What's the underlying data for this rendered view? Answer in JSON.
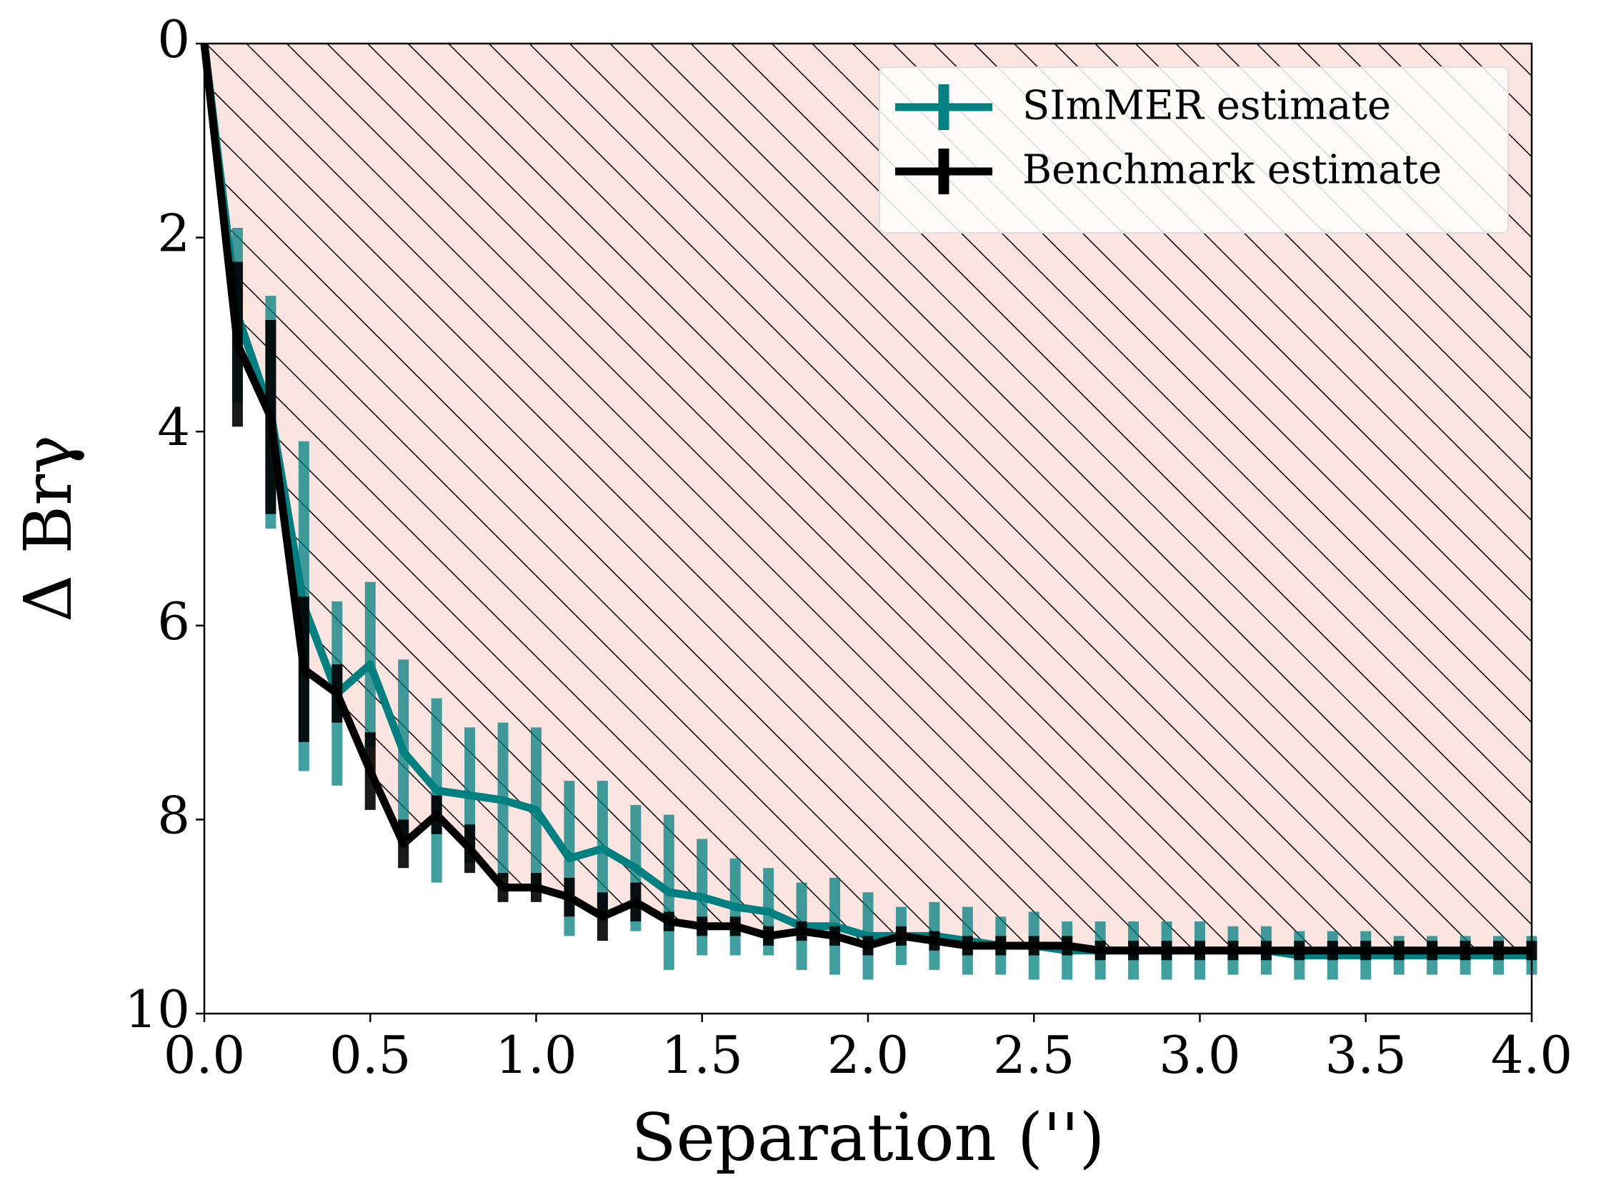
{
  "chart_data": {
    "type": "errorbar-line",
    "x_label": "Separation ('')",
    "y_label": "Δ Brγ",
    "x": [
      0,
      0.1,
      0.2,
      0.3,
      0.4,
      0.5,
      0.6,
      0.7,
      0.8,
      0.9,
      1.0,
      1.1,
      1.2,
      1.3,
      1.4,
      1.5,
      1.6,
      1.7,
      1.8,
      1.9,
      2.0,
      2.1,
      2.2,
      2.3,
      2.4,
      2.5,
      2.6,
      2.7,
      2.8,
      2.9,
      3.0,
      3.1,
      3.2,
      3.3,
      3.4,
      3.5,
      3.6,
      3.7,
      3.8,
      3.9,
      4.0
    ],
    "series": [
      {
        "name": "SImMER estimate",
        "color": "#008080",
        "values": [
          0,
          2.8,
          3.8,
          5.8,
          6.7,
          6.4,
          7.3,
          7.7,
          7.75,
          7.8,
          7.9,
          8.4,
          8.3,
          8.5,
          8.75,
          8.8,
          8.9,
          8.95,
          9.1,
          9.1,
          9.2,
          9.2,
          9.2,
          9.25,
          9.3,
          9.3,
          9.35,
          9.35,
          9.35,
          9.35,
          9.35,
          9.35,
          9.35,
          9.4,
          9.4,
          9.4,
          9.4,
          9.4,
          9.4,
          9.4,
          9.4
        ],
        "errors": [
          0,
          0.9,
          1.2,
          1.7,
          0.95,
          0.85,
          0.95,
          0.95,
          0.7,
          0.8,
          0.85,
          0.8,
          0.7,
          0.65,
          0.8,
          0.6,
          0.5,
          0.45,
          0.45,
          0.5,
          0.45,
          0.3,
          0.35,
          0.35,
          0.3,
          0.35,
          0.3,
          0.3,
          0.3,
          0.3,
          0.3,
          0.25,
          0.25,
          0.25,
          0.25,
          0.25,
          0.2,
          0.2,
          0.2,
          0.2,
          0.2
        ]
      },
      {
        "name": "Benchmark estimate",
        "color": "#000000",
        "values": [
          0,
          3.1,
          3.85,
          6.45,
          6.7,
          7.5,
          8.25,
          7.95,
          8.3,
          8.7,
          8.7,
          8.8,
          9.0,
          8.85,
          9.05,
          9.1,
          9.1,
          9.2,
          9.15,
          9.2,
          9.3,
          9.2,
          9.25,
          9.3,
          9.3,
          9.3,
          9.3,
          9.35,
          9.35,
          9.35,
          9.35,
          9.35,
          9.35,
          9.35,
          9.35,
          9.35,
          9.35,
          9.35,
          9.35,
          9.35,
          9.35
        ],
        "errors": [
          0,
          0.85,
          1.0,
          0.75,
          0.3,
          0.4,
          0.25,
          0.2,
          0.25,
          0.15,
          0.15,
          0.2,
          0.25,
          0.2,
          0.1,
          0.1,
          0.1,
          0.1,
          0.1,
          0.1,
          0.1,
          0.1,
          0.1,
          0.1,
          0.1,
          0.1,
          0.1,
          0.1,
          0.1,
          0.1,
          0.1,
          0.1,
          0.1,
          0.1,
          0.1,
          0.1,
          0.1,
          0.1,
          0.1,
          0.1,
          0.1
        ]
      }
    ],
    "xlim": [
      0,
      4
    ],
    "xticks": [
      {
        "value": 0,
        "label": "0.0"
      },
      0.5,
      {
        "value": 1,
        "label": "1.0"
      },
      1.5,
      {
        "value": 2,
        "label": "2.0"
      },
      2.5,
      {
        "value": 3,
        "label": "3.0"
      },
      3.5,
      {
        "value": 4,
        "label": "4.0"
      }
    ],
    "ylim": [
      10,
      0
    ],
    "yticks": [
      0,
      2,
      4,
      6,
      8,
      10
    ],
    "legend": "upper right"
  }
}
